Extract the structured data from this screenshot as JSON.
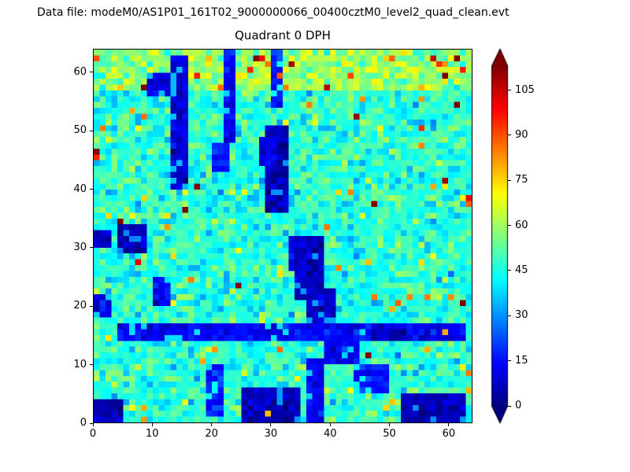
{
  "header": {
    "label": "Data file: modeM0/AS1P01_161T02_9000000066_00400cztM0_level2_quad_clean.evt"
  },
  "chart_data": {
    "type": "heatmap",
    "title": "Quadrant 0 DPH",
    "xlabel": "",
    "ylabel": "",
    "xlim": [
      0,
      64
    ],
    "ylim": [
      0,
      64
    ],
    "x_ticks": [
      0,
      10,
      20,
      30,
      40,
      50,
      60
    ],
    "y_ticks": [
      0,
      10,
      20,
      30,
      40,
      50,
      60
    ],
    "grid_size": {
      "nx": 64,
      "ny": 64
    },
    "colormap": "jet",
    "colorbar": {
      "ticks": [
        0,
        15,
        30,
        45,
        60,
        75,
        90,
        105
      ],
      "vmin": 0,
      "vmax": 113,
      "extend": "both",
      "low_color": "#00007f",
      "high_color": "#7f0000"
    },
    "value_model": {
      "seed": 66,
      "base": 47,
      "sigma": 6.5,
      "p_hot": 0.025,
      "hot_boost": 22,
      "p_very_hot": 0.006,
      "very_hot_boost": 58,
      "top_band": {
        "y0": 57,
        "boost": 9
      }
    },
    "features": {
      "low_regions": [
        {
          "x0": 13,
          "x1": 15,
          "y0": 40,
          "y1": 62,
          "value": 10
        },
        {
          "x0": 22,
          "x1": 23,
          "y0": 48,
          "y1": 63,
          "value": 12
        },
        {
          "x0": 30,
          "x1": 31,
          "y0": 54,
          "y1": 63,
          "value": 18
        },
        {
          "x0": 4,
          "x1": 8,
          "y0": 29,
          "y1": 33,
          "value": 4
        },
        {
          "x0": 0,
          "x1": 2,
          "y0": 30,
          "y1": 32,
          "value": 8
        },
        {
          "x0": 29,
          "x1": 32,
          "y0": 36,
          "y1": 50,
          "value": 5
        },
        {
          "x0": 28,
          "x1": 30,
          "y0": 44,
          "y1": 48,
          "value": 12
        },
        {
          "x0": 34,
          "x1": 38,
          "y0": 21,
          "y1": 31,
          "value": 6
        },
        {
          "x0": 33,
          "x1": 36,
          "y0": 26,
          "y1": 31,
          "value": 10
        },
        {
          "x0": 36,
          "x1": 40,
          "y0": 15,
          "y1": 22,
          "value": 7
        },
        {
          "x0": 39,
          "x1": 44,
          "y0": 10,
          "y1": 16,
          "value": 12
        },
        {
          "x0": 4,
          "x1": 62,
          "y0": 14,
          "y1": 16,
          "value": 14
        },
        {
          "x0": 25,
          "x1": 34,
          "y0": 0,
          "y1": 5,
          "value": 6
        },
        {
          "x0": 36,
          "x1": 38,
          "y0": 0,
          "y1": 10,
          "value": 12
        },
        {
          "x0": 52,
          "x1": 62,
          "y0": 0,
          "y1": 4,
          "value": 5
        },
        {
          "x0": 0,
          "x1": 4,
          "y0": 0,
          "y1": 3,
          "value": 4
        },
        {
          "x0": 19,
          "x1": 21,
          "y0": 1,
          "y1": 9,
          "value": 18
        },
        {
          "x0": 9,
          "x1": 12,
          "y0": 56,
          "y1": 59,
          "value": 10
        },
        {
          "x0": 0,
          "x1": 2,
          "y0": 18,
          "y1": 21,
          "value": 12
        },
        {
          "x0": 44,
          "x1": 49,
          "y0": 5,
          "y1": 9,
          "value": 16
        },
        {
          "x0": 20,
          "x1": 22,
          "y0": 43,
          "y1": 47,
          "value": 15
        },
        {
          "x0": 47,
          "x1": 52,
          "y0": 14,
          "y1": 16,
          "value": 8
        },
        {
          "x0": 10,
          "x1": 12,
          "y0": 20,
          "y1": 24,
          "value": 14
        }
      ],
      "high_cells": [
        {
          "x": 27,
          "y": 62,
          "value": 112
        },
        {
          "x": 28,
          "y": 62,
          "value": 100
        },
        {
          "x": 33,
          "y": 61,
          "value": 108
        },
        {
          "x": 26,
          "y": 60,
          "value": 95
        },
        {
          "x": 31,
          "y": 59,
          "value": 90
        },
        {
          "x": 57,
          "y": 62,
          "value": 105
        },
        {
          "x": 62,
          "y": 60,
          "value": 96
        },
        {
          "x": 50,
          "y": 62,
          "value": 88
        },
        {
          "x": 44,
          "y": 52,
          "value": 110
        },
        {
          "x": 8,
          "y": 52,
          "value": 86
        },
        {
          "x": 0,
          "y": 46,
          "value": 112
        },
        {
          "x": 0,
          "y": 45,
          "value": 95
        },
        {
          "x": 1,
          "y": 50,
          "value": 85
        },
        {
          "x": 63,
          "y": 38,
          "value": 100
        },
        {
          "x": 63,
          "y": 37,
          "value": 88
        },
        {
          "x": 29,
          "y": 1,
          "value": 78
        },
        {
          "x": 0,
          "y": 62,
          "value": 90
        },
        {
          "x": 8,
          "y": 0,
          "value": 82
        },
        {
          "x": 18,
          "y": 10,
          "value": 80
        },
        {
          "x": 47,
          "y": 21,
          "value": 85
        },
        {
          "x": 55,
          "y": 47,
          "value": 84
        },
        {
          "x": 12,
          "y": 33,
          "value": 82
        },
        {
          "x": 39,
          "y": 33,
          "value": 86
        },
        {
          "x": 59,
          "y": 15,
          "value": 80
        },
        {
          "x": 63,
          "y": 8,
          "value": 85
        }
      ]
    }
  }
}
